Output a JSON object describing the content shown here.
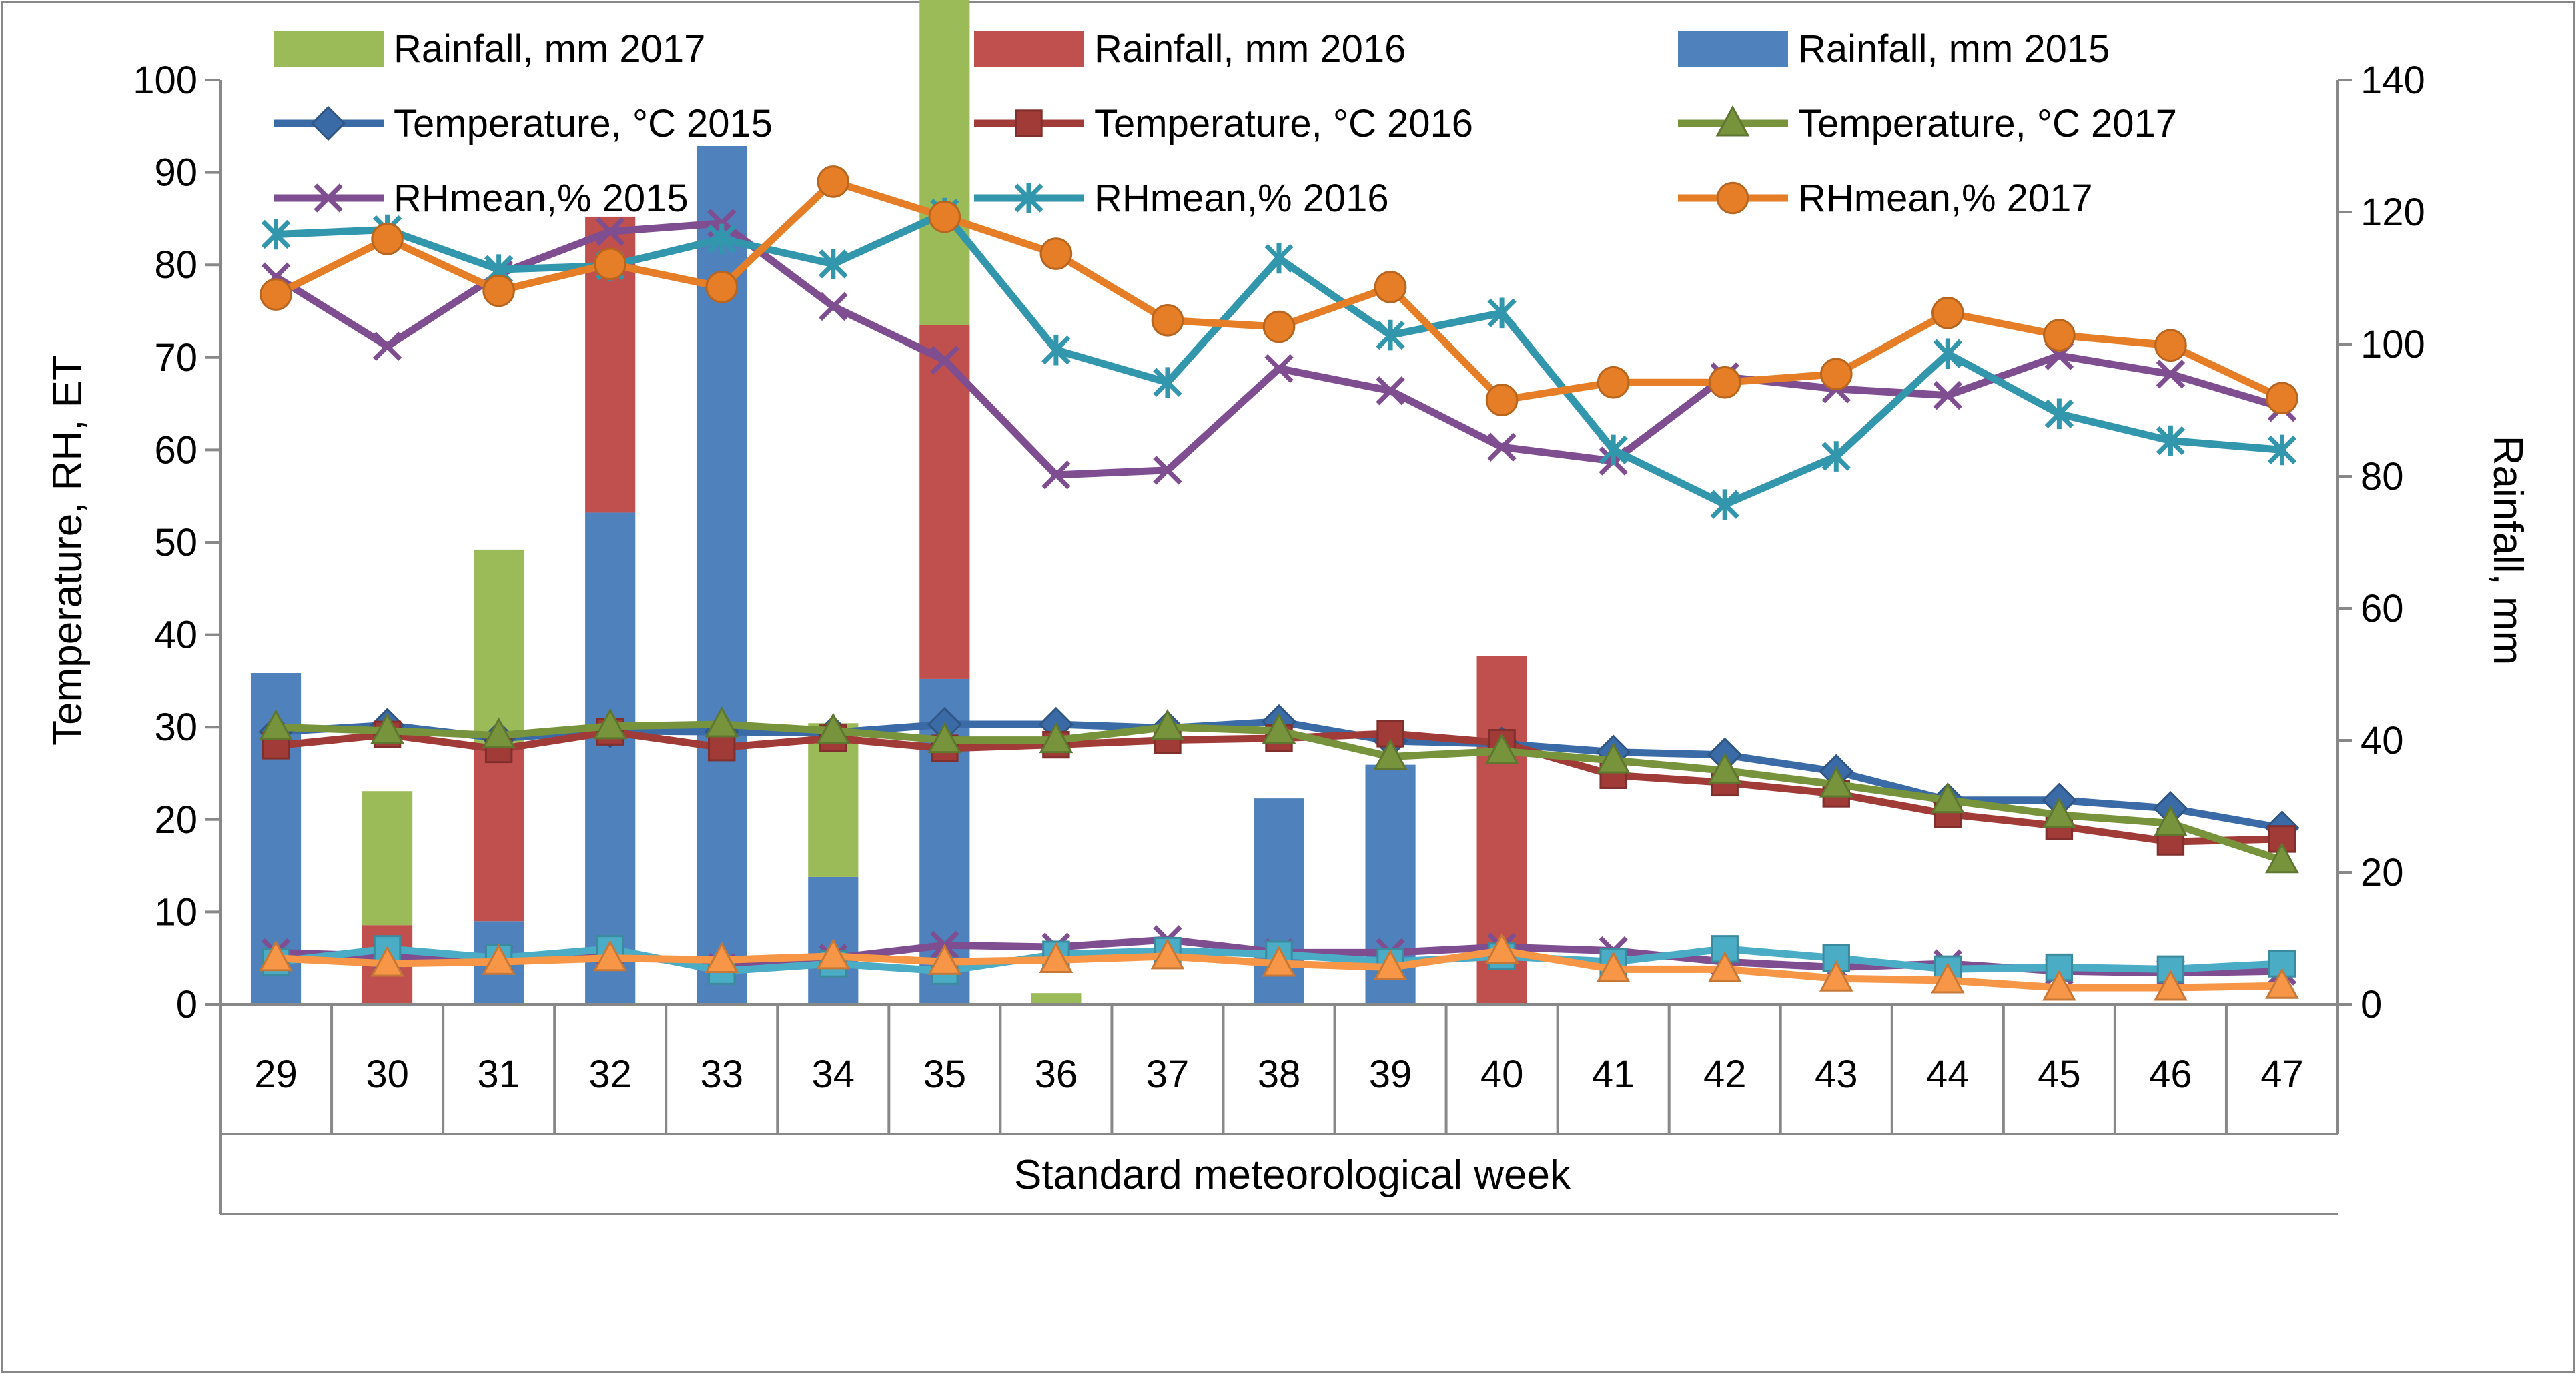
{
  "chart_data": {
    "type": "bar",
    "xlabel": "Standard meteorological week",
    "ylabel_left": "Temperature, RH, ET",
    "ylabel_right": "Rainfall, mm",
    "categories": [
      "29",
      "30",
      "31",
      "32",
      "33",
      "34",
      "35",
      "36",
      "37",
      "38",
      "39",
      "40",
      "41",
      "42",
      "43",
      "44",
      "45",
      "46",
      "47"
    ],
    "ylim_left": [
      0,
      100
    ],
    "ylim_right": [
      0,
      140
    ],
    "yticks_left": [
      "0",
      "10",
      "20",
      "30",
      "40",
      "50",
      "60",
      "70",
      "80",
      "90",
      "100"
    ],
    "yticks_right": [
      "0",
      "20",
      "40",
      "60",
      "80",
      "100",
      "120",
      "140"
    ],
    "grid": false,
    "legend_position": "top",
    "bar_series": [
      {
        "name": "Rainfall, mm 2017",
        "color": "#9BBB59",
        "axis": "right",
        "values": [
          0,
          20.3,
          30,
          0,
          0,
          23.3,
          67,
          1.7,
          0,
          0,
          0,
          0,
          0,
          0,
          0,
          0,
          0,
          0,
          0
        ]
      },
      {
        "name": "Rainfall, mm 2016",
        "color": "#C0504D",
        "axis": "right",
        "values": [
          0,
          12,
          26.3,
          44.8,
          0,
          0,
          53.6,
          0,
          0,
          0,
          0,
          52.8,
          0,
          0,
          0,
          0,
          0,
          0,
          0
        ]
      },
      {
        "name": "Rainfall, mm 2015",
        "color": "#4F81BD",
        "axis": "right",
        "values": [
          50.2,
          0,
          12.6,
          74.5,
          130,
          19.3,
          49.3,
          0,
          0,
          31.2,
          36.3,
          0,
          0,
          0,
          0,
          0,
          0,
          0,
          0
        ]
      }
    ],
    "line_series": [
      {
        "name": "Temperature, °C 2015",
        "color": "#3B6BA6",
        "marker": "diamond",
        "values": [
          29.5,
          30.2,
          28.8,
          29.6,
          29.5,
          29.4,
          30.3,
          30.3,
          29.9,
          30.6,
          28.5,
          28.2,
          27.3,
          27,
          25.2,
          22.1,
          22.1,
          21.2,
          19.1
        ]
      },
      {
        "name": "Temperature, °C 2016",
        "color": "#A03B37",
        "marker": "square",
        "values": [
          28,
          29.2,
          27.6,
          29.5,
          27.8,
          28.8,
          27.7,
          28.1,
          28.6,
          28.8,
          29.3,
          28.3,
          24.8,
          24,
          22.8,
          20.6,
          19.3,
          17.6,
          17.9
        ]
      },
      {
        "name": "Temperature, °C 2017",
        "color": "#77933C",
        "marker": "triangle",
        "values": [
          30,
          29.6,
          29.1,
          30.1,
          30.3,
          29.6,
          28.6,
          28.6,
          30,
          29.6,
          26.8,
          27.4,
          26.4,
          25.3,
          23.8,
          22.1,
          20.5,
          19.6,
          15.6
        ]
      },
      {
        "name": "RHmean,% 2015",
        "color": "#7E4E91",
        "marker": "x",
        "values": [
          78.7,
          71.2,
          79,
          83.6,
          84.5,
          75.5,
          69.7,
          57.3,
          57.8,
          68.8,
          66.4,
          60.3,
          58.8,
          67.9,
          66.6,
          65.9,
          70.2,
          68.2,
          64.6
        ]
      },
      {
        "name": "RHmean,% 2016",
        "color": "#3296AC",
        "marker": "star",
        "values": [
          83.3,
          83.8,
          79.5,
          79.9,
          82.8,
          80.1,
          85.6,
          70.8,
          67.3,
          80.7,
          72.4,
          74.8,
          60,
          54.1,
          59.3,
          70.4,
          63.9,
          61,
          60
        ]
      },
      {
        "name": "RHmean,% 2017",
        "color": "#E67E27",
        "marker": "circle",
        "values": [
          76.8,
          82.8,
          77.2,
          80.1,
          77.6,
          89,
          85.2,
          81.2,
          74,
          73.3,
          77.6,
          65.4,
          67.3,
          67.3,
          68.2,
          74.8,
          72.4,
          71.3,
          65.6
        ]
      },
      {
        "name": "",
        "color": "#7E4E91",
        "marker": "x",
        "legend": false,
        "values": [
          5.6,
          5.2,
          5.0,
          5.6,
          4.0,
          5.0,
          6.4,
          6.2,
          7.0,
          5.6,
          5.6,
          6.2,
          5.8,
          4.6,
          4.0,
          4.4,
          3.6,
          3.4,
          3.6
        ]
      },
      {
        "name": "",
        "color": "#4BACC6",
        "marker": "square",
        "legend": false,
        "values": [
          4.6,
          6.0,
          5.0,
          6.0,
          3.6,
          4.4,
          3.6,
          5.4,
          5.8,
          5.4,
          4.6,
          5.2,
          4.6,
          6.0,
          5.0,
          3.8,
          4.0,
          3.8,
          4.4
        ]
      },
      {
        "name": "",
        "color": "#F79646",
        "marker": "triangle",
        "legend": false,
        "values": [
          5.0,
          4.4,
          4.6,
          5.0,
          4.8,
          5.2,
          4.6,
          4.8,
          5.2,
          4.4,
          4.0,
          5.8,
          3.8,
          3.8,
          2.8,
          2.6,
          1.8,
          1.8,
          2.0
        ]
      }
    ]
  }
}
